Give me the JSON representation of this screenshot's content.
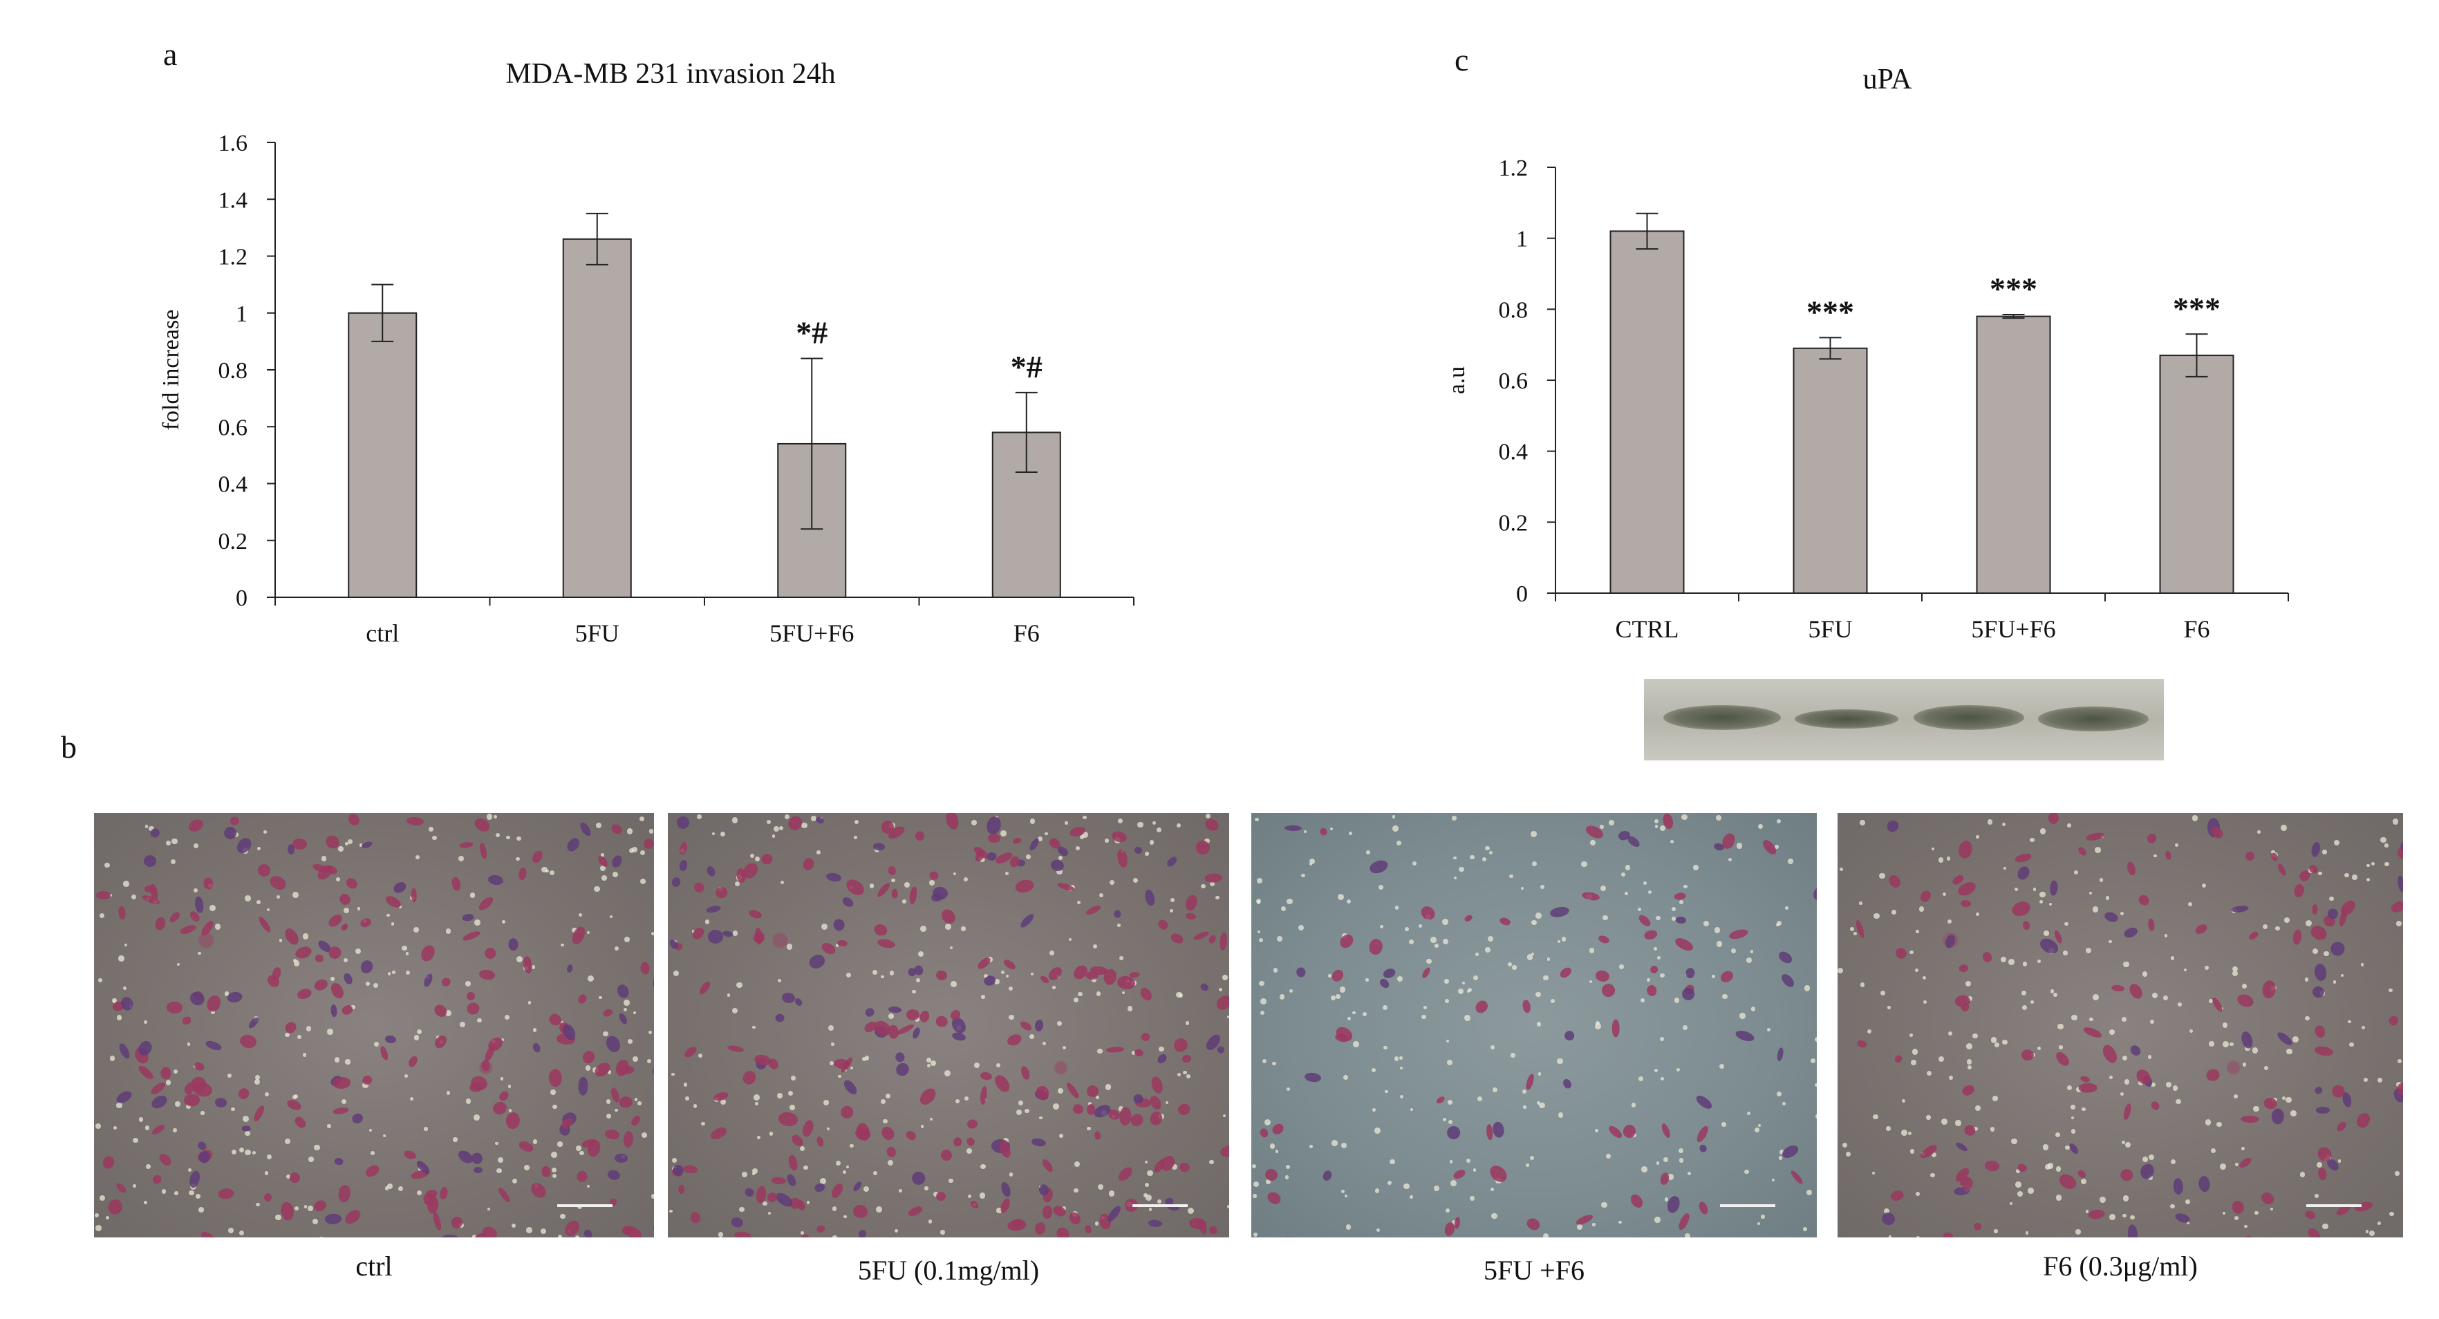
{
  "panels": {
    "a": "a",
    "b": "b",
    "c": "c"
  },
  "chart_data": [
    {
      "type": "bar",
      "title": "MDA-MB 231 invasion 24h",
      "xlabel": "",
      "ylabel": "fold increase",
      "categories": [
        "ctrl",
        "5FU",
        "5FU+F6",
        "F6"
      ],
      "values": [
        1.0,
        1.26,
        0.54,
        0.58
      ],
      "errors": [
        0.1,
        0.09,
        0.3,
        0.14
      ],
      "annotations": [
        "",
        "",
        "*#",
        "*#"
      ],
      "ylim": [
        0,
        1.6
      ],
      "yticks": [
        "0",
        "0.2",
        "0.4",
        "0.6",
        "0.8",
        "1",
        "1.2",
        "1.4",
        "1.6"
      ],
      "bar_color": "#b2aaa6",
      "grid": false,
      "legend": "none"
    },
    {
      "type": "bar",
      "title": "uPA",
      "xlabel": "",
      "ylabel": "a.u",
      "categories": [
        "CTRL",
        "5FU",
        "5FU+F6",
        "F6"
      ],
      "values": [
        1.02,
        0.69,
        0.78,
        0.67
      ],
      "errors": [
        0.05,
        0.03,
        0.005,
        0.06
      ],
      "annotations": [
        "",
        "***",
        "***",
        "***"
      ],
      "ylim": [
        0,
        1.2
      ],
      "yticks": [
        "0",
        "0.2",
        "0.4",
        "0.6",
        "0.8",
        "1",
        "1.2"
      ],
      "bar_color": "#b2aaa6",
      "grid": false,
      "legend": "none"
    }
  ],
  "micrographs": [
    {
      "label": "ctrl",
      "tone": "warm",
      "cell_density": 0.9
    },
    {
      "label": "5FU (0.1mg/ml)",
      "tone": "warm",
      "cell_density": 1.0
    },
    {
      "label": "5FU +F6",
      "tone": "cool",
      "cell_density": 0.35
    },
    {
      "label": "F6 (0.3μg/ml)",
      "tone": "warm",
      "cell_density": 0.55
    }
  ]
}
